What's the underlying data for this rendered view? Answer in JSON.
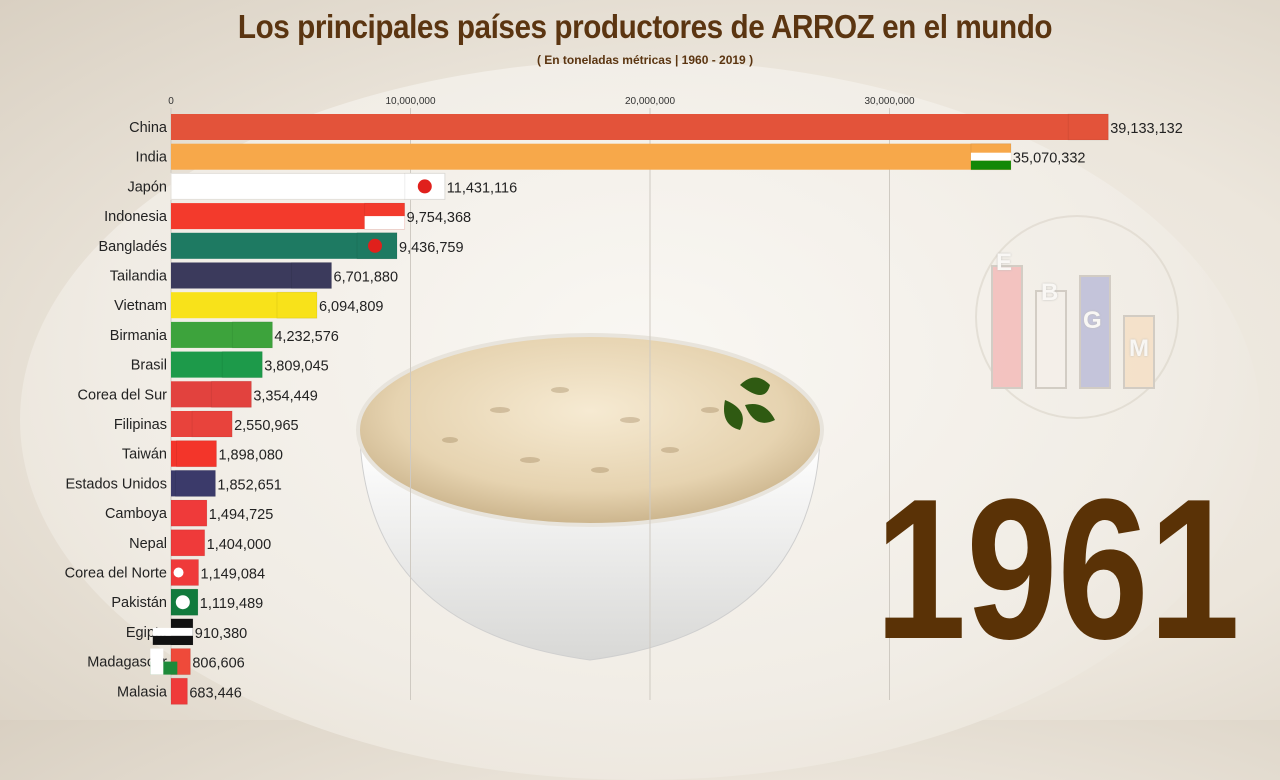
{
  "title": "Los principales países productores de ARROZ en el mundo",
  "subtitle": "( En toneladas métricas | 1960 - 2019 )",
  "year": "1961",
  "logo": {
    "letters": [
      "E",
      "B",
      "G",
      "M"
    ]
  },
  "colors": {
    "title": "#5b3511",
    "year": "#5a3206",
    "grid": "#cfcac2"
  },
  "chart_data": {
    "type": "bar",
    "orientation": "horizontal",
    "title": "Los principales países productores de ARROZ en el mundo",
    "subtitle": "( En toneladas métricas | 1960 - 2019 )",
    "x_ticks": [
      0,
      10000000,
      20000000,
      30000000
    ],
    "x_tick_labels": [
      "0",
      "10,000,000",
      "20,000,000",
      "30,000,000"
    ],
    "xlim": [
      0,
      40000000
    ],
    "categories": [
      "China",
      "India",
      "Japón",
      "Indonesia",
      "Bangladés",
      "Tailandia",
      "Vietnam",
      "Birmania",
      "Brasil",
      "Corea del Sur",
      "Filipinas",
      "Taiwán",
      "Estados Unidos",
      "Camboya",
      "Nepal",
      "Corea del Norte",
      "Pakistán",
      "Egipto",
      "Madagascar",
      "Malasia"
    ],
    "values": [
      39133132,
      35070332,
      11431116,
      9754368,
      9436759,
      6701880,
      6094809,
      4232576,
      3809045,
      3354449,
      2550965,
      1898080,
      1852651,
      1494725,
      1404000,
      1149084,
      1119489,
      910380,
      806606,
      683446
    ],
    "value_labels": [
      "39,133,132",
      "35,070,332",
      "11,431,116",
      "9,754,368",
      "9,436,759",
      "6,701,880",
      "6,094,809",
      "4,232,576",
      "3,809,045",
      "3,354,449",
      "2,550,965",
      "1,898,080",
      "1,852,651",
      "1,494,725",
      "1,404,000",
      "1,149,084",
      "1,119,489",
      "910,380",
      "806,606",
      "683,446"
    ],
    "bar_colors": [
      "#e3533a",
      "#f7a84a",
      "#ffffff",
      "#f33a2c",
      "#1e7a62",
      "#3b3a5c",
      "#f8e21a",
      "#3da33c",
      "#1d9a4a",
      "#e2423e",
      "#e8433c",
      "#f3352a",
      "#3b3a6a",
      "#ef3a3a",
      "#ef3a3a",
      "#ef3a3a",
      "#117a3c",
      "#111111",
      "#ef4a3a",
      "#ef3a3a"
    ],
    "grid": true
  }
}
